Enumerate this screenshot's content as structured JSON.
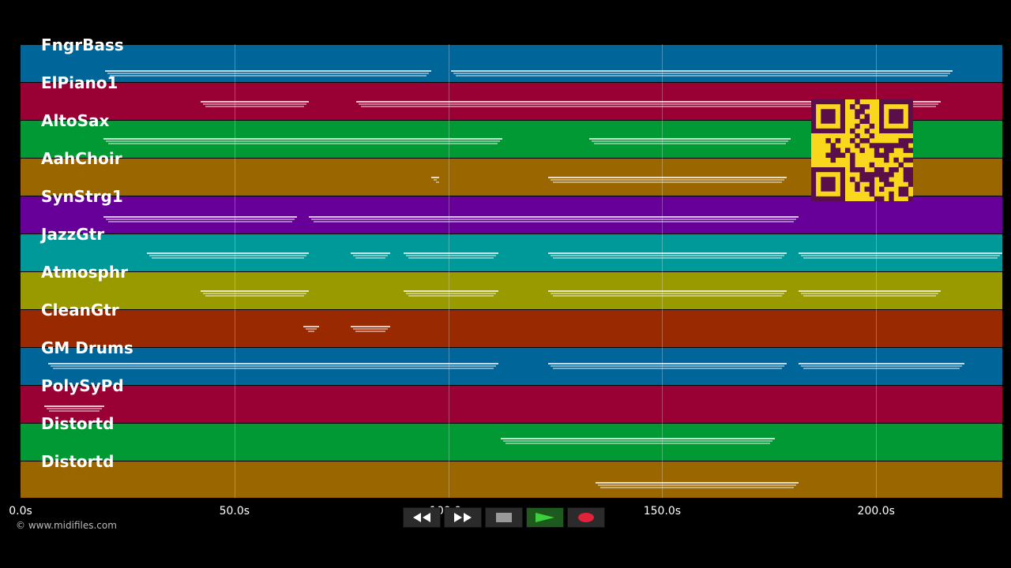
{
  "tracks": [
    {
      "name": "FngrBass",
      "color": "#006699"
    },
    {
      "name": "ElPiano1",
      "color": "#990033"
    },
    {
      "name": "AltoSax",
      "color": "#009933"
    },
    {
      "name": "AahChoir",
      "color": "#996600"
    },
    {
      "name": "SynStrg1",
      "color": "#660099"
    },
    {
      "name": "JazzGtr",
      "color": "#009999"
    },
    {
      "name": "Atmosphr",
      "color": "#999900"
    },
    {
      "name": "CleanGtr",
      "color": "#992900"
    },
    {
      "name": "GM Drums",
      "color": "#006699"
    },
    {
      "name": "PolySyPd",
      "color": "#990033"
    },
    {
      "name": "Distortd",
      "color": "#009933"
    },
    {
      "name": "Distortd",
      "color": "#996600"
    }
  ],
  "timeline": {
    "ticks": [
      {
        "value": 0,
        "label": "0.0s"
      },
      {
        "value": 50,
        "label": "50.0s"
      },
      {
        "value": 100,
        "label": "100.0s"
      },
      {
        "value": 150,
        "label": "150.0s"
      },
      {
        "value": 200,
        "label": "200.0s"
      }
    ],
    "max_seconds": 229.5
  },
  "transport": {
    "buttons": [
      {
        "name": "rewind-button",
        "icon": "rewind-icon"
      },
      {
        "name": "fast-forward-button",
        "icon": "fast-forward-icon"
      },
      {
        "name": "stop-button",
        "icon": "stop-icon"
      },
      {
        "name": "play-button",
        "icon": "play-icon"
      },
      {
        "name": "record-button",
        "icon": "record-icon"
      }
    ]
  },
  "copyright": "© www.midifiles.com",
  "qr_code": {
    "icon": "qr-code-icon",
    "color": "#f9d71c"
  }
}
